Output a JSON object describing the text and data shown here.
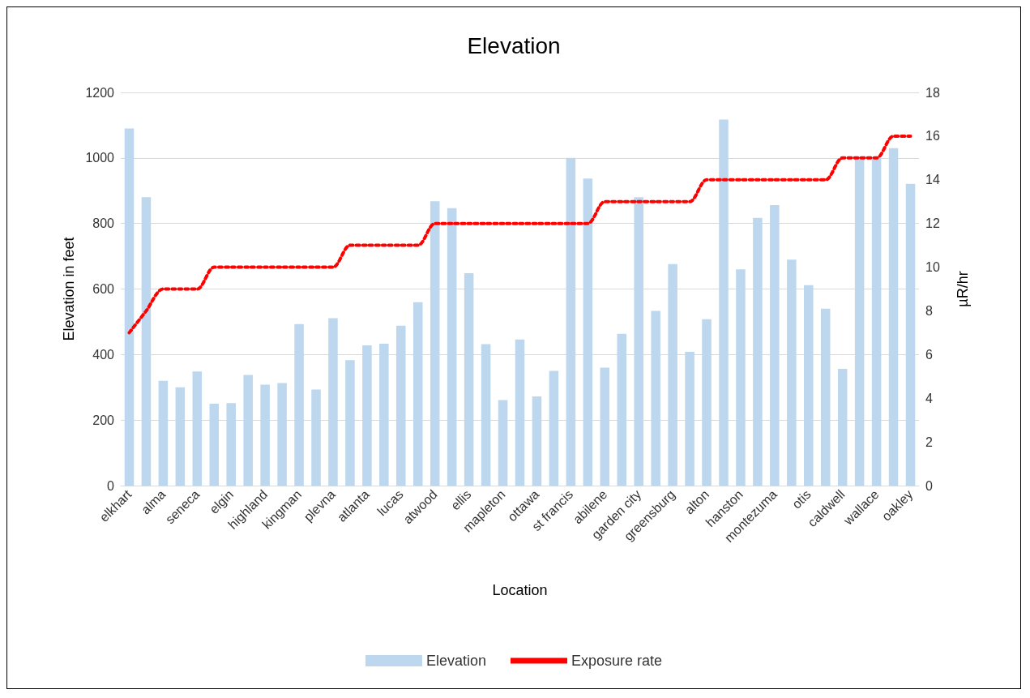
{
  "chart_data": {
    "type": "bar",
    "title": "Elevation",
    "xlabel": "Location",
    "ylabel": "Elevation in feet",
    "y2label": "µR/hr",
    "categories": [
      "elkhart",
      null,
      "alma",
      null,
      "seneca",
      null,
      "elgin",
      null,
      "highland",
      null,
      "kingman",
      null,
      "plevna",
      null,
      "atlanta",
      null,
      "lucas",
      null,
      "atwood",
      null,
      "ellis",
      null,
      "mapleton",
      null,
      "ottawa",
      null,
      "st francis",
      null,
      "abilene",
      null,
      "garden city",
      null,
      "greensburg",
      null,
      "alton",
      null,
      "hanston",
      null,
      "montezuma",
      null,
      "otis",
      null,
      "caldwell",
      null,
      "wallace",
      null,
      "oakley"
    ],
    "series": [
      {
        "name": "Elevation",
        "color": "#bdd7ee",
        "values": [
          1090,
          880,
          320,
          300,
          348,
          250,
          252,
          338,
          308,
          313,
          493,
          293,
          511,
          383,
          428,
          433,
          488,
          560,
          868,
          847,
          648,
          432,
          261,
          446,
          272,
          350,
          1000,
          937,
          360,
          463,
          880,
          533,
          676,
          408,
          508,
          1117,
          660,
          817,
          856,
          690,
          612,
          540,
          356,
          1000,
          1000,
          1030,
          921
        ]
      },
      {
        "name": "Exposure rate",
        "type": "line",
        "axis": "y2",
        "color": "#ff0000",
        "line_style": "dotted",
        "marker": "none",
        "values": [
          7,
          8,
          9,
          9,
          9,
          10,
          10,
          10,
          10,
          10,
          10,
          10,
          10,
          11,
          11,
          11,
          11,
          11,
          12,
          12,
          12,
          12,
          12,
          12,
          12,
          12,
          12,
          12,
          13,
          13,
          13,
          13,
          13,
          13,
          14,
          14,
          14,
          14,
          14,
          14,
          14,
          14,
          15,
          15,
          15,
          16,
          16
        ]
      }
    ],
    "ylim": [
      0,
      1200
    ],
    "yticks": [
      0,
      200,
      400,
      600,
      800,
      1000,
      1200
    ],
    "y2lim": [
      0,
      18
    ],
    "y2ticks": [
      0,
      2,
      4,
      6,
      8,
      10,
      12,
      14,
      16,
      18
    ],
    "grid": "y",
    "legend": "bottom"
  }
}
